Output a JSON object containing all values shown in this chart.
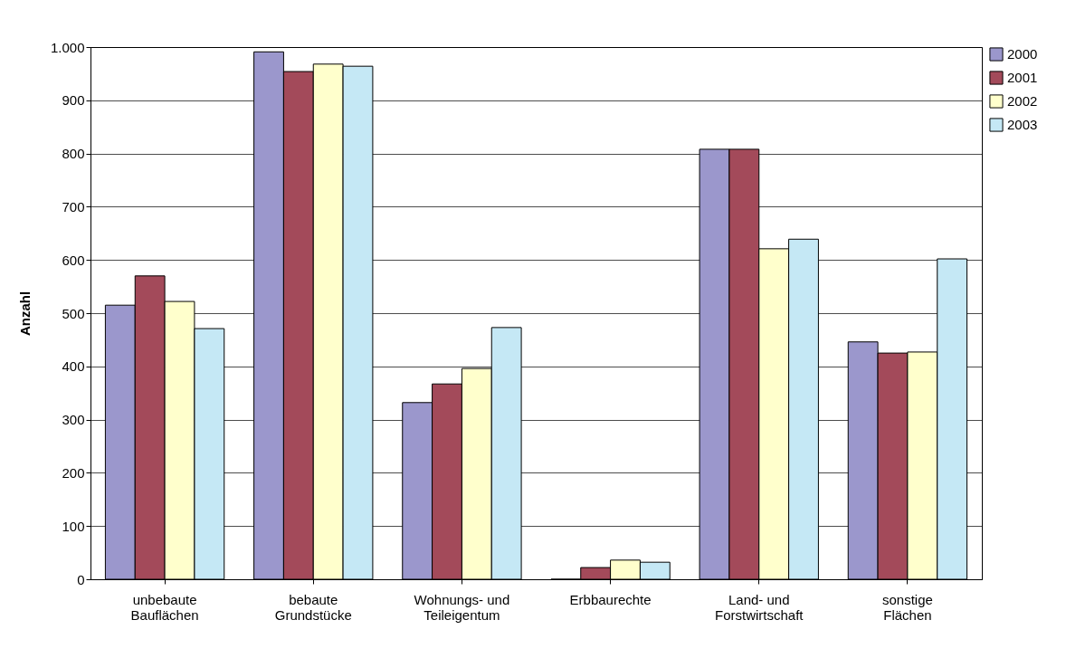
{
  "chart_data": {
    "type": "bar",
    "ylabel": "Anzahl",
    "categories": [
      "unbebaute Bauflächen",
      "bebaute Grundstücke",
      "Wohnungs- und Teileigentum",
      "Erbbaurechte",
      "Land- und Forstwirtschaft",
      "sonstige Flächen"
    ],
    "series": [
      {
        "name": "2000",
        "color": "#9b97cc",
        "values": [
          515,
          991,
          332,
          0,
          808,
          446
        ]
      },
      {
        "name": "2001",
        "color": "#a34a5a",
        "values": [
          570,
          954,
          367,
          22,
          808,
          425
        ]
      },
      {
        "name": "2002",
        "color": "#ffffcc",
        "values": [
          522,
          968,
          396,
          36,
          621,
          427
        ]
      },
      {
        "name": "2003",
        "color": "#c5e8f5",
        "values": [
          471,
          964,
          473,
          32,
          639,
          602
        ]
      }
    ],
    "ylim": [
      0,
      1000
    ],
    "yticks": [
      0,
      100,
      200,
      300,
      400,
      500,
      600,
      700,
      800,
      900,
      {
        "value": 1000,
        "label": "1.000"
      }
    ],
    "grid": "y",
    "legend": "top right"
  }
}
